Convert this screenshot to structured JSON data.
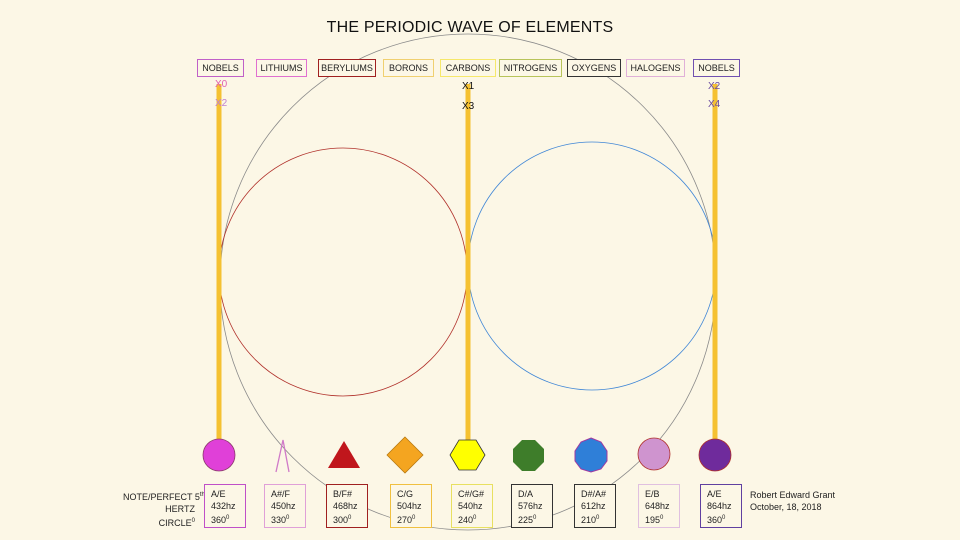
{
  "title": "THE PERIODIC WAVE OF ELEMENTS",
  "groups": [
    "NOBELS",
    "LITHIUMS",
    "BERYLIUMS",
    "BORONS",
    "CARBONS",
    "NITROGENS",
    "OXYGENS",
    "HALOGENS",
    "NOBELS"
  ],
  "axis_markers": {
    "left": [
      "X0",
      "X2"
    ],
    "center": [
      "X1",
      "X3"
    ],
    "right": [
      "X2",
      "X4"
    ]
  },
  "row_labels": {
    "note": "NOTE/PERFECT 5",
    "note_sup": "th",
    "hertz": "HERTZ",
    "circle": "CIRCLE",
    "circle_sup": "0"
  },
  "degree_sup": "0",
  "notes": [
    {
      "note": "A/E",
      "hertz": "432hz",
      "degree": "360",
      "shape": "circle-icon",
      "color": "#e040d8"
    },
    {
      "note": "A#/F",
      "hertz": "450hz",
      "degree": "330",
      "shape": "lambda-icon",
      "color": "#d07ac8"
    },
    {
      "note": "B/F#",
      "hertz": "468hz",
      "degree": "300",
      "shape": "triangle-icon",
      "color": "#c0161c"
    },
    {
      "note": "C/G",
      "hertz": "504hz",
      "degree": "270",
      "shape": "diamond-icon",
      "color": "#f4a520"
    },
    {
      "note": "C#/G#",
      "hertz": "540hz",
      "degree": "240",
      "shape": "hexagon-icon",
      "color": "#ffff00"
    },
    {
      "note": "D/A",
      "hertz": "576hz",
      "degree": "225",
      "shape": "octagon-icon",
      "color": "#3e7d2a"
    },
    {
      "note": "D#/A#",
      "hertz": "612hz",
      "degree": "210",
      "shape": "nonagon-icon",
      "color": "#2f7fd8"
    },
    {
      "note": "E/B",
      "hertz": "648hz",
      "degree": "195",
      "shape": "circle-icon",
      "color": "#cf94cf"
    },
    {
      "note": "A/E",
      "hertz": "864hz",
      "degree": "360",
      "shape": "circle-icon",
      "color": "#6f2b9c"
    }
  ],
  "credit": {
    "author": "Robert Edward Grant",
    "date": "October, 18, 2018"
  },
  "colors": {
    "background": "#fcf7e6",
    "vertical_bar": "#f5c131",
    "left_circle": "#b0302a",
    "right_circle": "#3f86d6",
    "big_circle": "#8a8a8a"
  }
}
